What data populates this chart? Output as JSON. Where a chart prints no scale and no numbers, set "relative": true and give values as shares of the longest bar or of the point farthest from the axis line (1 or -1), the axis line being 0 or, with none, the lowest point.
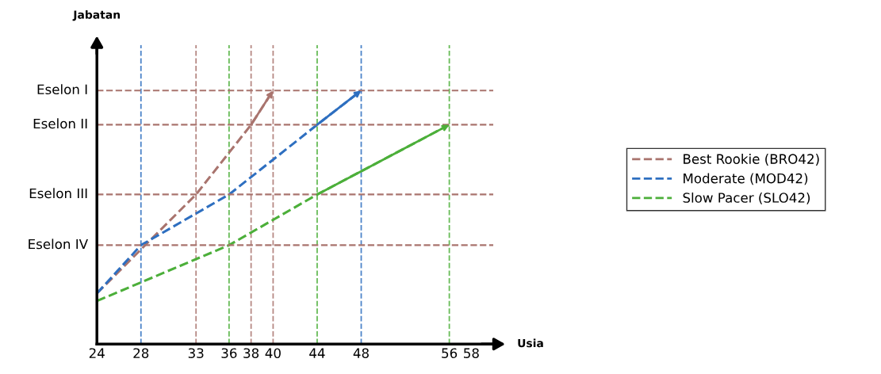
{
  "chart_data": {
    "type": "line",
    "xlabel": "Usia",
    "relative": true,
    "xlim": [
      24,
      60
    ],
    "xticks": [
      24,
      28,
      33,
      36,
      38,
      40,
      44,
      48,
      56,
      58
    ],
    "annotations": [
      "Jabatan"
    ],
    "ref_lines": [
      {
        "axis": "y",
        "value": 0.39,
        "label": "Eselon IV",
        "color": "#a9746e",
        "line_style": "dashed"
      },
      {
        "axis": "y",
        "value": 0.59,
        "label": "Eselon III",
        "color": "#a9746e",
        "line_style": "dashed"
      },
      {
        "axis": "y",
        "value": 0.865,
        "label": "Eselon II",
        "color": "#a9746e",
        "line_style": "dashed"
      },
      {
        "axis": "y",
        "value": 1,
        "label": "Eselon I",
        "color": "#a9746e",
        "line_style": "dashed"
      },
      {
        "axis": "x",
        "value": 28,
        "color": "#2e6fc0",
        "line_style": "dashed"
      },
      {
        "axis": "x",
        "value": 33,
        "color": "#a9746e",
        "line_style": "dashed"
      },
      {
        "axis": "x",
        "value": 36,
        "color": "#4caf3a",
        "line_style": "dashed"
      },
      {
        "axis": "x",
        "value": 38,
        "color": "#a9746e",
        "line_style": "dashed"
      },
      {
        "axis": "x",
        "value": 40,
        "color": "#a9746e",
        "line_style": "dashed"
      },
      {
        "axis": "x",
        "value": 44,
        "color": "#4caf3a",
        "line_style": "dashed"
      },
      {
        "axis": "x",
        "value": 48,
        "color": "#2e6fc0",
        "line_style": "dashed"
      },
      {
        "axis": "x",
        "value": 56,
        "color": "#4caf3a",
        "line_style": "dashed"
      }
    ],
    "line_style": "dashed",
    "marker": "none",
    "legend": "right",
    "series": [
      {
        "name": "Best Rookie (BRO42)",
        "color": "#a9746e",
        "x": [
          24,
          33,
          38,
          40
        ],
        "values": [
          0.2,
          0.59,
          0.865,
          1
        ]
      },
      {
        "name": "Moderate (MOD42)",
        "color": "#2e6fc0",
        "x": [
          24,
          28,
          36,
          44,
          48
        ],
        "values": [
          0.2,
          0.39,
          0.59,
          0.865,
          1
        ]
      },
      {
        "name": "Slow Pacer (SLO42)",
        "color": "#4caf3a",
        "x": [
          24,
          36,
          44,
          56
        ],
        "values": [
          0.17,
          0.39,
          0.59,
          0.865
        ]
      }
    ]
  }
}
